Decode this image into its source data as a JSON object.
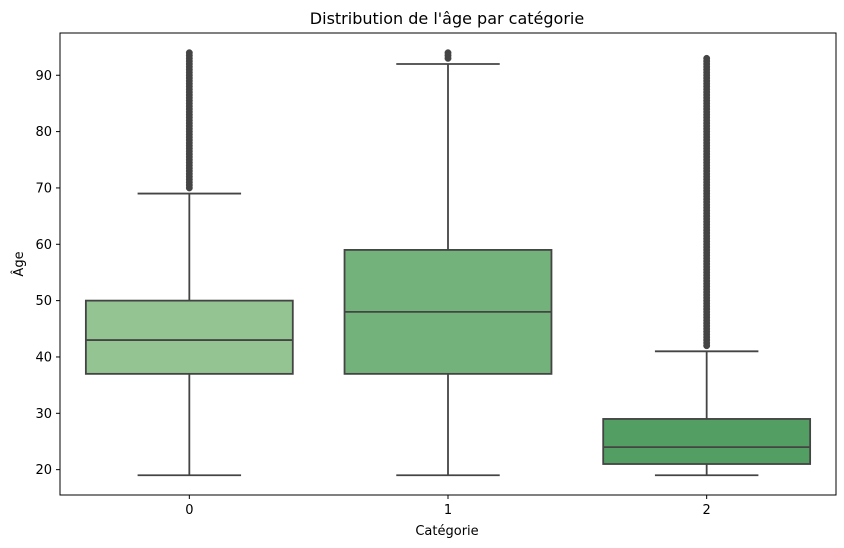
{
  "chart_data": {
    "type": "box",
    "title": "Distribution de l'âge par catégorie",
    "xlabel": "Catégorie",
    "ylabel": "Âge",
    "categories": [
      "0",
      "1",
      "2"
    ],
    "ylim": [
      15.5,
      97.5
    ],
    "yticks": [
      20,
      30,
      40,
      50,
      60,
      70,
      80,
      90
    ],
    "grid": false,
    "boxes": [
      {
        "category": "0",
        "whisker_low": 19,
        "q1": 37,
        "median": 43,
        "q3": 50,
        "whisker_high": 69,
        "outlier_min": 70,
        "outlier_max": 94,
        "color": "#93c492"
      },
      {
        "category": "1",
        "whisker_low": 19,
        "q1": 37,
        "median": 48,
        "q3": 59,
        "whisker_high": 92,
        "outlier_min": 93,
        "outlier_max": 94,
        "color": "#74b27c"
      },
      {
        "category": "2",
        "whisker_low": 19,
        "q1": 21,
        "median": 24,
        "q3": 29,
        "whisker_high": 41,
        "outlier_min": 42,
        "outlier_max": 93,
        "color": "#529e63"
      }
    ],
    "line_color": "#444444"
  }
}
